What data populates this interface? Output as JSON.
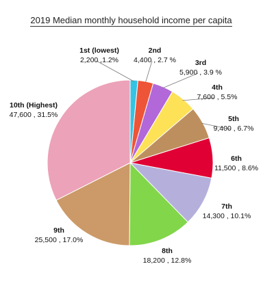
{
  "chart_data": {
    "type": "pie",
    "title": "2019 Median monthly household income per capita",
    "slices": [
      {
        "name": "1st (lowest)",
        "value": 2200,
        "value_label": "2,200",
        "pct_label": "1.2%",
        "color": "#35c3e3"
      },
      {
        "name": "2nd",
        "value": 4400,
        "value_label": "4,400",
        "pct_label": "2.7 %",
        "color": "#ee5437"
      },
      {
        "name": "3rd",
        "value": 5900,
        "value_label": "5,900",
        "pct_label": "3.9 %",
        "color": "#b268d8"
      },
      {
        "name": "4th",
        "value": 7600,
        "value_label": "7,600",
        "pct_label": "5.5%",
        "color": "#fde157"
      },
      {
        "name": "5th",
        "value": 9400,
        "value_label": "9,400",
        "pct_label": "6.7%",
        "color": "#be8f5e"
      },
      {
        "name": "6th",
        "value": 11500,
        "value_label": "11,500",
        "pct_label": "8.6%",
        "color": "#e00034"
      },
      {
        "name": "7th",
        "value": 14300,
        "value_label": "14,300",
        "pct_label": "10.1%",
        "color": "#b5b0db"
      },
      {
        "name": "8th",
        "value": 18200,
        "value_label": "18,200",
        "pct_label": "12.8%",
        "color": "#82d64a"
      },
      {
        "name": "9th",
        "value": 25500,
        "value_label": "25,500",
        "pct_label": "17.0%",
        "color": "#cc9a68"
      },
      {
        "name": "10th (Highest)",
        "value": 47600,
        "value_label": "47,600",
        "pct_label": "31.5%",
        "color": "#eca2b8"
      }
    ]
  }
}
